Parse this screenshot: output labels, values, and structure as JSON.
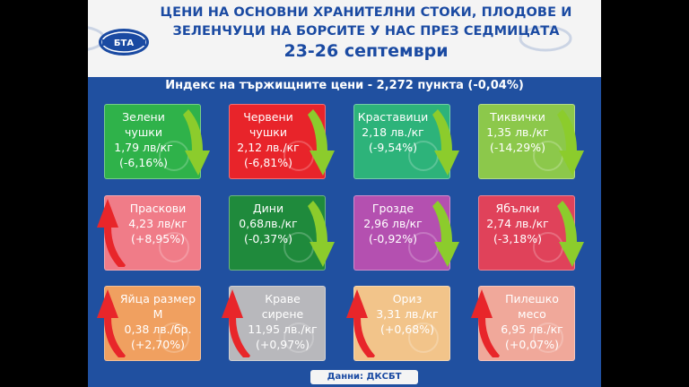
{
  "header": {
    "title_line1": "ЦЕНИ НА ОСНОВНИ ХРАНИТЕЛНИ СТОКИ, ПЛОДОВЕ И",
    "title_line2": "ЗЕЛЕНЧУЦИ НА БОРСИТЕ У НАС ПРЕЗ СЕДМИЦАТА",
    "date": "23-26 септември",
    "logo_text": "БТА"
  },
  "index_line": "Индекс на тържищните цени - 2,272 пункта (-0,04%)",
  "products": [
    {
      "name": "Зелени чушки",
      "price": "1,79 лв/кг",
      "change": "(-6,16%)",
      "trend": "down",
      "color": "#2fb24a"
    },
    {
      "name": "Червени чушки",
      "price": "2,12 лв./кг",
      "change": "(-6,81%)",
      "trend": "down",
      "color": "#e8242a"
    },
    {
      "name": "Краставици",
      "price": "2,18 лв./кг",
      "change": "(-9,54%)",
      "trend": "down",
      "color": "#2db37a"
    },
    {
      "name": "Тиквички",
      "price": "1,35 лв./кг",
      "change": "(-14,29%)",
      "trend": "down",
      "color": "#8cc84b"
    },
    {
      "name": "Праскови",
      "price": "4,23 лв/кг",
      "change": "(+8,95%)",
      "trend": "up",
      "color": "#f07c88"
    },
    {
      "name": "Дини",
      "price": "0,68лв./кг",
      "change": "(-0,37%)",
      "trend": "down",
      "color": "#1f8a3c"
    },
    {
      "name": "Грозде",
      "price": "2,96 лв/кг",
      "change": "(-0,92%)",
      "trend": "down",
      "color": "#b450b0"
    },
    {
      "name": "Ябълки",
      "price": "2,74 лв./кг",
      "change": "(-3,18%)",
      "trend": "down",
      "color": "#e0425a"
    },
    {
      "name": "Яйца размер М",
      "price": "0,38 лв./бр.",
      "change": "(+2,70%)",
      "trend": "up",
      "color": "#f0a060"
    },
    {
      "name": "Краве сирене",
      "price": "11,95 лв./кг",
      "change": "(+0,97%)",
      "trend": "up",
      "color": "#b8b8bc"
    },
    {
      "name": "Ориз",
      "price": "3,31 лв./кг",
      "change": "(+0,68%)",
      "trend": "up",
      "color": "#f2c48a"
    },
    {
      "name": "Пилешко месо",
      "price": "6,95 лв./кг",
      "change": "(+0,07%)",
      "trend": "up",
      "color": "#f0a89a"
    }
  ],
  "source": "Данни: ДКСБТ",
  "colors": {
    "background": "#2050a0",
    "header_bg": "#f4f4f4",
    "title": "#1a4aa2",
    "arrow_up": "#e8262a",
    "arrow_down": "#8ccc2c"
  }
}
